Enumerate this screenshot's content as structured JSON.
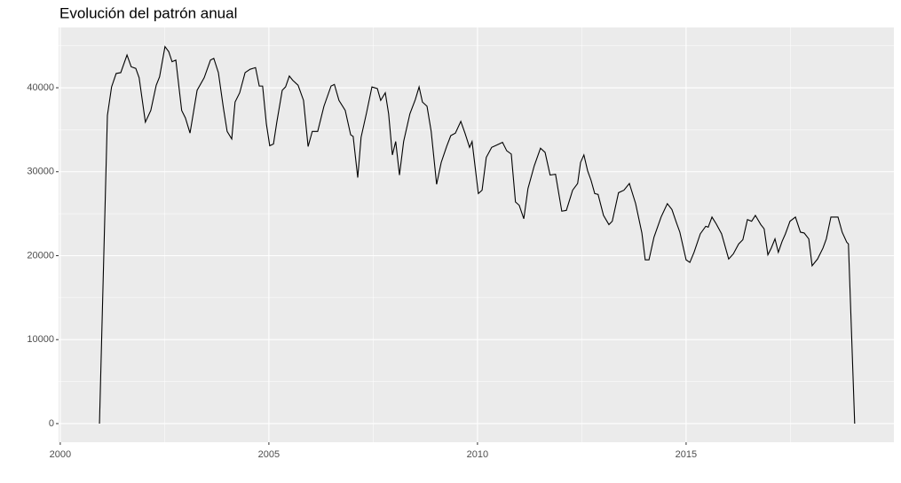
{
  "chart_data": {
    "type": "line",
    "title": "Evolución del patrón anual",
    "x": [
      2000.94,
      2001.13,
      2001.23,
      2001.34,
      2001.45,
      2001.6,
      2001.7,
      2001.81,
      2001.89,
      2002.04,
      2002.17,
      2002.3,
      2002.38,
      2002.51,
      2002.6,
      2002.68,
      2002.77,
      2002.91,
      2003.0,
      2003.11,
      2003.28,
      2003.45,
      2003.6,
      2003.68,
      2003.79,
      2003.91,
      2004.0,
      2004.11,
      2004.19,
      2004.3,
      2004.43,
      2004.55,
      2004.68,
      2004.77,
      2004.85,
      2004.94,
      2005.02,
      2005.11,
      2005.19,
      2005.32,
      2005.4,
      2005.49,
      2005.57,
      2005.7,
      2005.83,
      2005.94,
      2006.04,
      2006.17,
      2006.32,
      2006.49,
      2006.57,
      2006.68,
      2006.83,
      2006.96,
      2007.02,
      2007.13,
      2007.21,
      2007.34,
      2007.47,
      2007.6,
      2007.68,
      2007.79,
      2007.87,
      2007.96,
      2008.04,
      2008.13,
      2008.23,
      2008.38,
      2008.51,
      2008.6,
      2008.68,
      2008.79,
      2008.89,
      2009.02,
      2009.13,
      2009.26,
      2009.36,
      2009.47,
      2009.6,
      2009.7,
      2009.81,
      2009.87,
      2010.02,
      2010.11,
      2010.21,
      2010.34,
      2010.47,
      2010.6,
      2010.7,
      2010.81,
      2010.91,
      2011.0,
      2011.11,
      2011.21,
      2011.36,
      2011.51,
      2011.62,
      2011.74,
      2011.87,
      2012.02,
      2012.13,
      2012.28,
      2012.4,
      2012.47,
      2012.55,
      2012.64,
      2012.72,
      2012.81,
      2012.89,
      2013.02,
      2013.15,
      2013.23,
      2013.38,
      2013.51,
      2013.64,
      2013.79,
      2013.94,
      2014.02,
      2014.11,
      2014.23,
      2014.4,
      2014.55,
      2014.66,
      2014.77,
      2014.85,
      2015.0,
      2015.09,
      2015.19,
      2015.34,
      2015.47,
      2015.53,
      2015.62,
      2015.72,
      2015.85,
      2016.02,
      2016.13,
      2016.26,
      2016.36,
      2016.47,
      2016.57,
      2016.66,
      2016.79,
      2016.87,
      2016.96,
      2017.04,
      2017.13,
      2017.21,
      2017.3,
      2017.38,
      2017.49,
      2017.62,
      2017.74,
      2017.83,
      2017.94,
      2018.02,
      2018.15,
      2018.28,
      2018.36,
      2018.47,
      2018.64,
      2018.74,
      2018.85,
      2018.89,
      2019.04
    ],
    "values": [
      0,
      36700,
      40100,
      41700,
      41800,
      43900,
      42500,
      42300,
      41200,
      35900,
      37300,
      40300,
      41300,
      44900,
      44300,
      43100,
      43300,
      37300,
      36400,
      34600,
      39700,
      41200,
      43300,
      43500,
      41800,
      37600,
      34800,
      33900,
      38300,
      39400,
      41800,
      42200,
      42400,
      40200,
      40200,
      35700,
      33100,
      33300,
      35900,
      39700,
      40100,
      41400,
      40900,
      40300,
      38500,
      33000,
      34800,
      34800,
      37800,
      40200,
      40400,
      38500,
      37300,
      34400,
      34200,
      29300,
      34100,
      37000,
      40100,
      39900,
      38500,
      39400,
      36900,
      32000,
      33600,
      29600,
      33600,
      36900,
      38600,
      40100,
      38300,
      37800,
      34800,
      28500,
      31100,
      33000,
      34300,
      34600,
      36000,
      34600,
      32900,
      33600,
      27400,
      27800,
      31700,
      32900,
      33200,
      33500,
      32500,
      32100,
      26400,
      26000,
      24400,
      28000,
      30700,
      32800,
      32300,
      29600,
      29700,
      25300,
      25400,
      27800,
      28600,
      31100,
      32000,
      30100,
      29000,
      27400,
      27300,
      24800,
      23700,
      24100,
      27500,
      27800,
      28600,
      26200,
      22700,
      19500,
      19500,
      22200,
      24600,
      26200,
      25500,
      23900,
      22800,
      19500,
      19200,
      20400,
      22600,
      23500,
      23400,
      24600,
      23800,
      22600,
      19600,
      20200,
      21400,
      21900,
      24300,
      24100,
      24800,
      23700,
      23200,
      20100,
      20900,
      22000,
      20400,
      21700,
      22600,
      24100,
      24600,
      22800,
      22700,
      22000,
      18800,
      19600,
      20900,
      22000,
      24600,
      24600,
      22800,
      21600,
      21400,
      0
    ],
    "color": "#000000",
    "xlim": [
      1999.96,
      2019.98
    ],
    "xticks": [
      2000,
      2005,
      2010,
      2015
    ],
    "x_minor_ticks": [
      2002.5,
      2007.5,
      2012.5,
      2017.5
    ],
    "ylim": [
      -2220,
      47180
    ],
    "yticks": [
      0,
      10000,
      20000,
      30000,
      40000
    ],
    "y_minor_ticks": [
      5000,
      15000,
      25000,
      35000,
      45000
    ],
    "grid": true
  }
}
